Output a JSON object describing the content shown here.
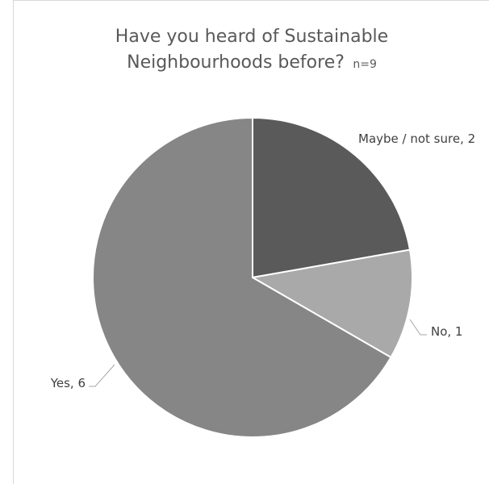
{
  "chart_data": {
    "type": "pie",
    "title_line1": "Have you heard of Sustainable",
    "title_line2": "Neighbourhoods before?",
    "title_note": "n=9",
    "slices": [
      {
        "label": "Maybe / not sure",
        "value": 2,
        "display": "Maybe / not sure, 2",
        "color": "#5a5a5a"
      },
      {
        "label": "No",
        "value": 1,
        "display": "No, 1",
        "color": "#a9a9a9"
      },
      {
        "label": "Yes",
        "value": 6,
        "display": "Yes, 6",
        "color": "#868686"
      }
    ],
    "start_angle_deg": 0,
    "direction": "clockwise",
    "slice_border_color": "#ffffff",
    "legend": "none"
  }
}
